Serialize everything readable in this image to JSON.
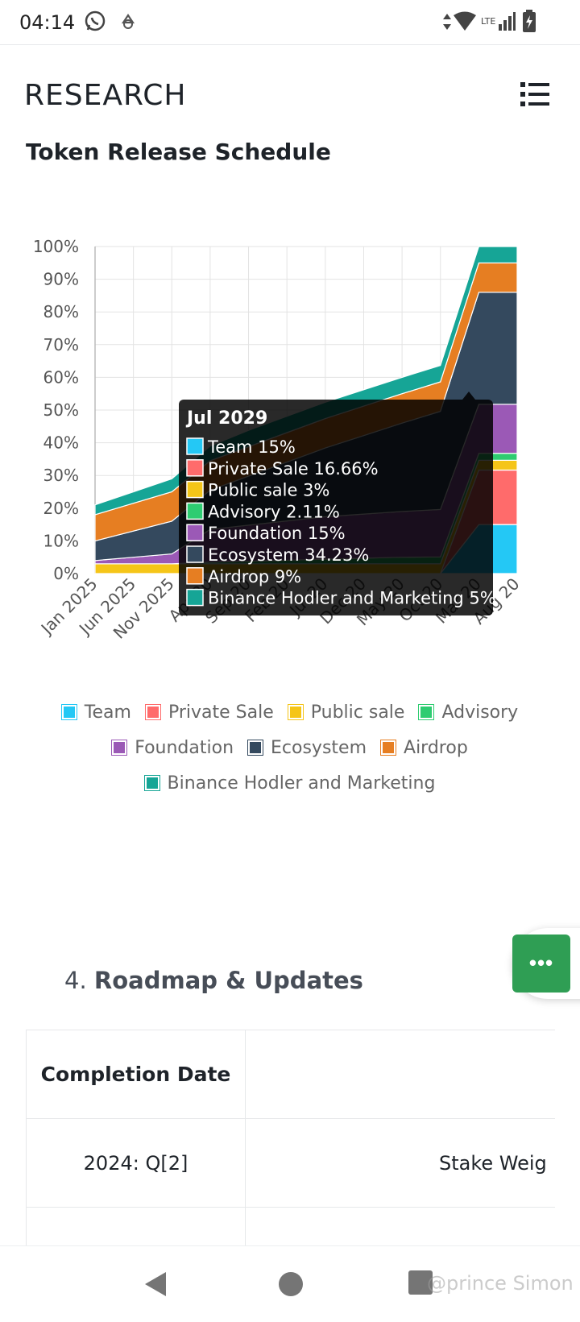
{
  "status_bar": {
    "time": "04:14",
    "network": "LTE"
  },
  "header": {
    "brand": "RESEARCH"
  },
  "section": {
    "title": "Token Release Schedule"
  },
  "chart_data": {
    "type": "area",
    "stacked": true,
    "x": [
      "Jan 2025",
      "Jun 2025",
      "Nov 2025",
      "Apr 2026",
      "Sep 2026",
      "Feb 2027",
      "Jul 2027",
      "Dec 2027",
      "May 2028",
      "Oct 2028",
      "Mar 2029",
      "Aug 2029"
    ],
    "x_ticks_visible": [
      "Jan 2025",
      "Jun 2025",
      "Nov 2025",
      "Apr 20",
      "Sep 20",
      "Feb 20",
      "Jul 20",
      "Dec 20",
      "May 20",
      "Oct 20",
      "Mar 20",
      "Aug 20"
    ],
    "y_ticks": [
      "0%",
      "10%",
      "20%",
      "30%",
      "40%",
      "50%",
      "60%",
      "70%",
      "80%",
      "90%",
      "100%"
    ],
    "ylim": [
      0,
      100
    ],
    "grid": true,
    "legend_position": "bottom",
    "series": [
      {
        "name": "Team",
        "color": "#24c8f5",
        "values": [
          0,
          0,
          0,
          0,
          0,
          0,
          0,
          0,
          0,
          0,
          15,
          15
        ]
      },
      {
        "name": "Private Sale",
        "color": "#ff6b6b",
        "values": [
          0,
          0,
          0,
          0,
          0,
          0,
          0,
          0,
          0,
          0,
          16.66,
          16.66
        ]
      },
      {
        "name": "Public sale",
        "color": "#f5c518",
        "values": [
          3,
          3,
          3,
          3,
          3,
          3,
          3,
          3,
          3,
          3,
          3,
          3
        ]
      },
      {
        "name": "Advisory",
        "color": "#2ecc71",
        "values": [
          0,
          0,
          0,
          0.5,
          0.8,
          1.1,
          1.4,
          1.7,
          2,
          2.11,
          2.11,
          2.11
        ]
      },
      {
        "name": "Foundation",
        "color": "#9b59b6",
        "values": [
          1,
          2,
          3,
          10,
          11,
          12,
          13,
          13.5,
          14,
          14.5,
          15,
          15
        ]
      },
      {
        "name": "Ecosystem",
        "color": "#34495e",
        "values": [
          6,
          8,
          10,
          12,
          15,
          18,
          21,
          24,
          27,
          30,
          34.23,
          34.23
        ]
      },
      {
        "name": "Airdrop",
        "color": "#e67e22",
        "values": [
          8,
          8.5,
          9,
          9,
          9,
          9,
          9,
          9,
          9,
          9,
          9,
          9
        ]
      },
      {
        "name": "Binance Hodler and Marketing",
        "color": "#16a596",
        "values": [
          3,
          3.5,
          4,
          4.5,
          5,
          5,
          5,
          5,
          5,
          5,
          5,
          5
        ]
      }
    ],
    "tooltip": {
      "title": "Jul 2029",
      "rows": [
        {
          "label": "Team 15%",
          "color": "#24c8f5"
        },
        {
          "label": "Private Sale 16.66%",
          "color": "#ff6b6b"
        },
        {
          "label": "Public sale 3%",
          "color": "#f5c518"
        },
        {
          "label": "Advisory 2.11%",
          "color": "#2ecc71"
        },
        {
          "label": "Foundation 15%",
          "color": "#9b59b6"
        },
        {
          "label": "Ecosystem 34.23%",
          "color": "#34495e"
        },
        {
          "label": "Airdrop 9%",
          "color": "#e67e22"
        },
        {
          "label": "Binance Hodler and Marketing 5%",
          "color": "#16a596"
        }
      ]
    }
  },
  "roadmap": {
    "number": "4.",
    "title": "Roadmap & Updates",
    "header_date": "Completion Date",
    "header_desc": "",
    "rows": [
      {
        "date": "2024: Q[2]",
        "desc": "Stake Weig"
      }
    ]
  },
  "fab": {
    "label": "•••"
  },
  "nav": {
    "watermark": "@prince Simon"
  }
}
